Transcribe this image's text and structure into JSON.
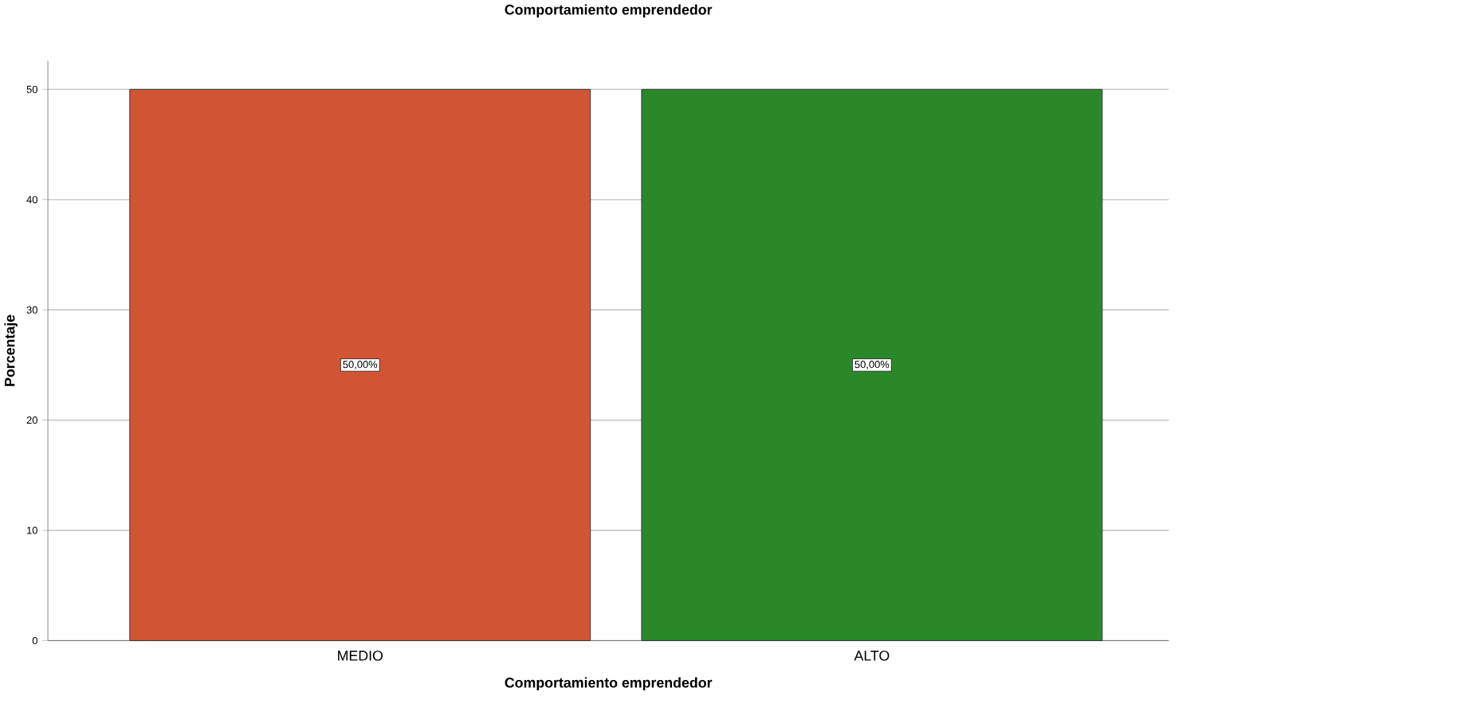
{
  "chart_data": {
    "type": "bar",
    "title": "Comportamiento emprendedor",
    "xlabel": "Comportamiento emprendedor",
    "ylabel": "Porcentaje",
    "categories": [
      "MEDIO",
      "ALTO"
    ],
    "values": [
      50,
      50
    ],
    "colors": [
      "#d15535",
      "#2a882b"
    ],
    "value_labels": [
      "50,00%",
      "50,00%"
    ],
    "ylim": [
      0,
      52.6
    ],
    "yticks": [
      0,
      10,
      20,
      30,
      40,
      50
    ],
    "grid": "y"
  }
}
